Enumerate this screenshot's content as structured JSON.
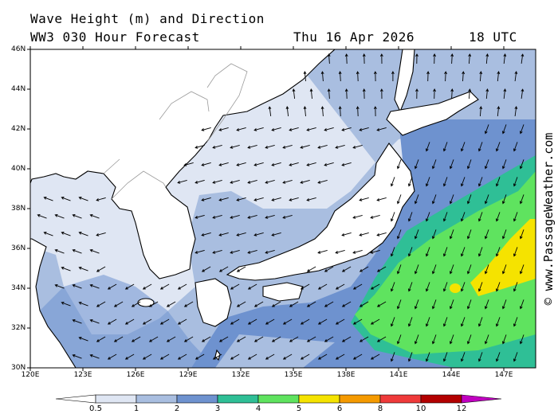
{
  "header": {
    "title": "Wave Height (m) and Direction",
    "model": "WW3 030 Hour Forecast",
    "date": "Thu 16 Apr 2026",
    "time": "18 UTC"
  },
  "axes": {
    "lat_labels": [
      "46N",
      "44N",
      "42N",
      "40N",
      "38N",
      "36N",
      "34N",
      "32N",
      "30N"
    ],
    "lon_labels": [
      "120E",
      "123E",
      "126E",
      "129E",
      "132E",
      "135E",
      "138E",
      "141E",
      "144E",
      "147E"
    ]
  },
  "legend": {
    "labels": [
      "0.5",
      "1",
      "2",
      "3",
      "4",
      "5",
      "6",
      "8",
      "10",
      "12"
    ],
    "colors": [
      "#ffffff",
      "#dfe6f3",
      "#a9bee0",
      "#6e92cf",
      "#2fbf96",
      "#5fe35f",
      "#f5e300",
      "#f59a00",
      "#ef3a3a",
      "#b30000",
      "#c000c0"
    ]
  },
  "credit": "© www.PassageWeather.com",
  "map_data": {
    "extent": {
      "lon": [
        120,
        149
      ],
      "lat": [
        30,
        46
      ]
    },
    "colors": {
      "land": "#ffffff",
      "coast": "#000000",
      "border": "#999999",
      "arrow": "#000000"
    }
  }
}
